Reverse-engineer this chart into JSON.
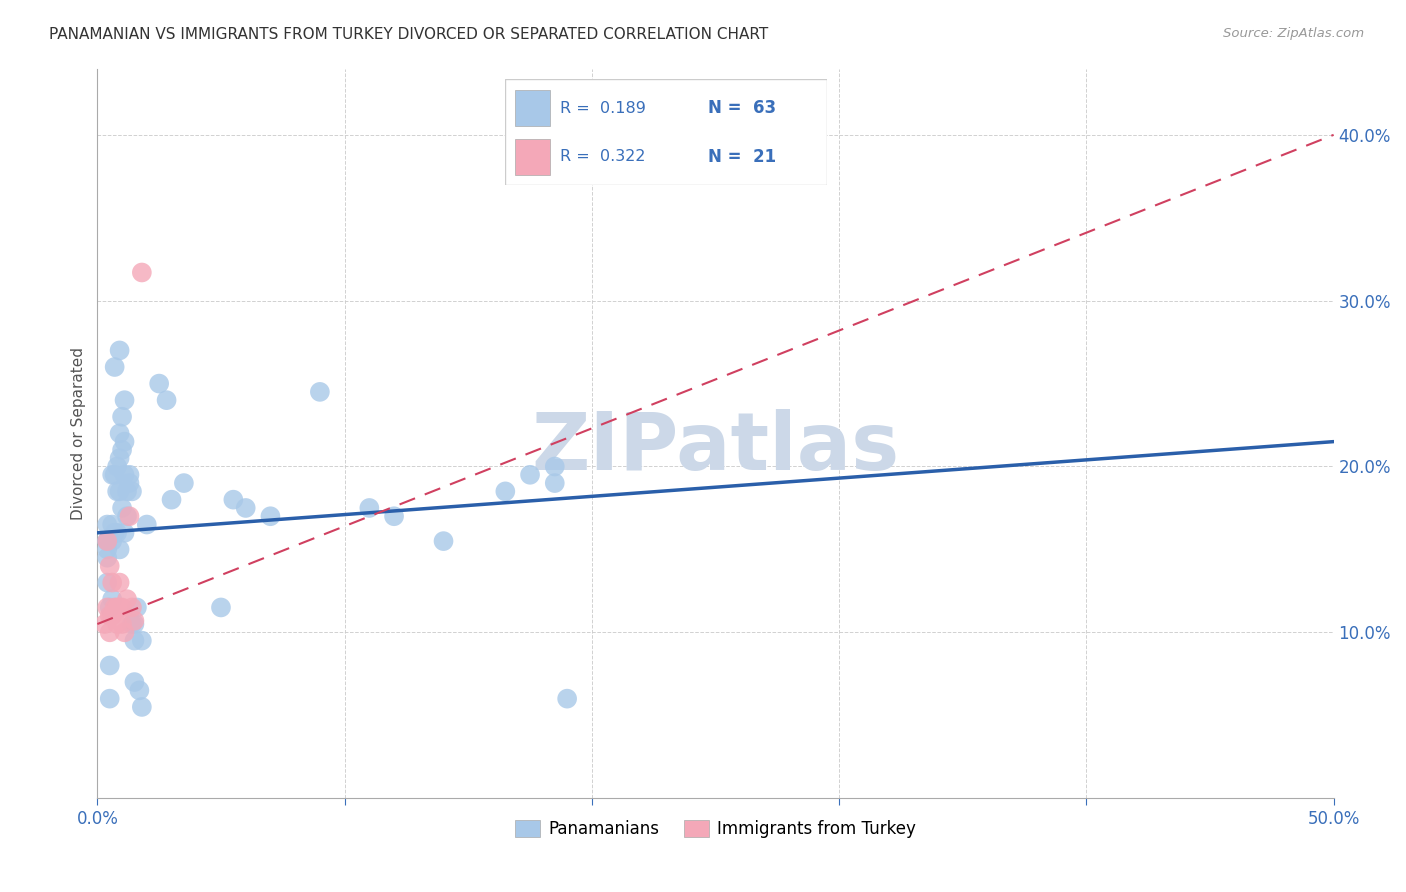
{
  "title": "PANAMANIAN VS IMMIGRANTS FROM TURKEY DIVORCED OR SEPARATED CORRELATION CHART",
  "source": "Source: ZipAtlas.com",
  "ylabel": "Divorced or Separated",
  "xlim": [
    0.0,
    0.5
  ],
  "ylim": [
    0.0,
    0.44
  ],
  "xticks": [
    0.0,
    0.1,
    0.2,
    0.3,
    0.4,
    0.5
  ],
  "yticks": [
    0.1,
    0.2,
    0.3,
    0.4
  ],
  "blue_color": "#a8c8e8",
  "pink_color": "#f4a8b8",
  "blue_line_color": "#2a5faa",
  "pink_line_color": "#d04060",
  "watermark_text": "ZIPatlas",
  "watermark_color": "#ccd8e8",
  "pan_points_x": [
    0.004,
    0.004,
    0.004,
    0.004,
    0.004,
    0.004,
    0.005,
    0.005,
    0.005,
    0.006,
    0.006,
    0.006,
    0.006,
    0.007,
    0.007,
    0.007,
    0.008,
    0.008,
    0.008,
    0.009,
    0.009,
    0.009,
    0.009,
    0.009,
    0.01,
    0.01,
    0.01,
    0.011,
    0.011,
    0.011,
    0.011,
    0.012,
    0.012,
    0.013,
    0.013,
    0.014,
    0.014,
    0.015,
    0.015,
    0.015,
    0.016,
    0.017,
    0.018,
    0.018,
    0.02,
    0.025,
    0.028,
    0.03,
    0.035,
    0.05,
    0.055,
    0.06,
    0.07,
    0.09,
    0.11,
    0.12,
    0.14,
    0.165,
    0.175,
    0.185,
    0.185,
    0.19
  ],
  "pan_points_y": [
    0.165,
    0.155,
    0.155,
    0.15,
    0.145,
    0.13,
    0.115,
    0.08,
    0.06,
    0.195,
    0.165,
    0.155,
    0.12,
    0.26,
    0.195,
    0.16,
    0.2,
    0.185,
    0.16,
    0.27,
    0.22,
    0.205,
    0.185,
    0.15,
    0.23,
    0.21,
    0.175,
    0.24,
    0.215,
    0.195,
    0.16,
    0.185,
    0.17,
    0.195,
    0.19,
    0.185,
    0.105,
    0.105,
    0.095,
    0.07,
    0.115,
    0.065,
    0.055,
    0.095,
    0.165,
    0.25,
    0.24,
    0.18,
    0.19,
    0.115,
    0.18,
    0.175,
    0.17,
    0.245,
    0.175,
    0.17,
    0.155,
    0.185,
    0.195,
    0.19,
    0.2,
    0.06
  ],
  "tur_points_x": [
    0.003,
    0.004,
    0.004,
    0.005,
    0.005,
    0.005,
    0.006,
    0.006,
    0.007,
    0.008,
    0.008,
    0.009,
    0.009,
    0.01,
    0.01,
    0.011,
    0.012,
    0.013,
    0.014,
    0.015,
    0.018
  ],
  "tur_points_y": [
    0.105,
    0.155,
    0.115,
    0.11,
    0.14,
    0.1,
    0.13,
    0.11,
    0.115,
    0.105,
    0.115,
    0.13,
    0.115,
    0.115,
    0.105,
    0.1,
    0.12,
    0.17,
    0.115,
    0.107,
    0.317
  ],
  "blue_trend_x": [
    0.0,
    0.5
  ],
  "blue_trend_y": [
    0.16,
    0.215
  ],
  "pink_trend_x": [
    0.0,
    0.5
  ],
  "pink_trend_y": [
    0.105,
    0.4
  ],
  "background_color": "#ffffff"
}
